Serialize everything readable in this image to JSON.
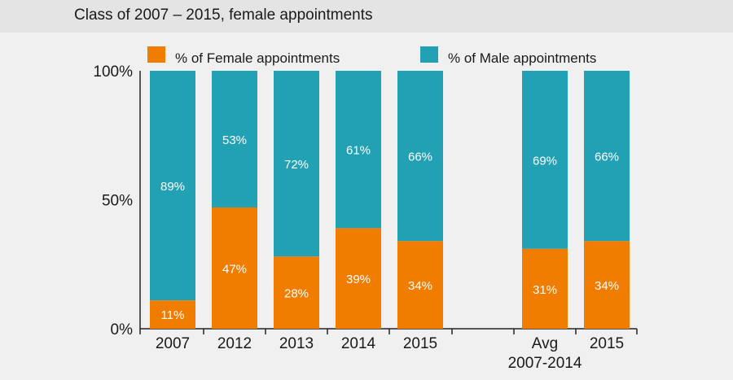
{
  "chart_data": {
    "type": "bar",
    "stacked": true,
    "title": "Class of 2007 – 2015, female appointments",
    "categories": [
      {
        "label": "2007",
        "sublabel": ""
      },
      {
        "label": "2012",
        "sublabel": ""
      },
      {
        "label": "2013",
        "sublabel": ""
      },
      {
        "label": "2014",
        "sublabel": ""
      },
      {
        "label": "2015",
        "sublabel": ""
      },
      {
        "label": "Avg",
        "sublabel": "2007-2014"
      },
      {
        "label": "2015",
        "sublabel": ""
      }
    ],
    "series": [
      {
        "name": "% of Female appointments",
        "color": "#f07c00",
        "values": [
          11,
          47,
          28,
          39,
          34,
          31,
          34
        ],
        "labels": [
          "11%",
          "47%",
          "28%",
          "39%",
          "34%",
          "31%",
          "34%"
        ]
      },
      {
        "name": "% of Male appointments",
        "color": "#22a0b4",
        "values": [
          89,
          53,
          72,
          61,
          66,
          69,
          66
        ],
        "labels": [
          "89%",
          "53%",
          "72%",
          "61%",
          "66%",
          "69%",
          "66%"
        ]
      }
    ],
    "yticks": [
      "100%",
      "50%",
      "0%"
    ],
    "ylim": [
      0,
      100
    ],
    "legend": "top"
  }
}
